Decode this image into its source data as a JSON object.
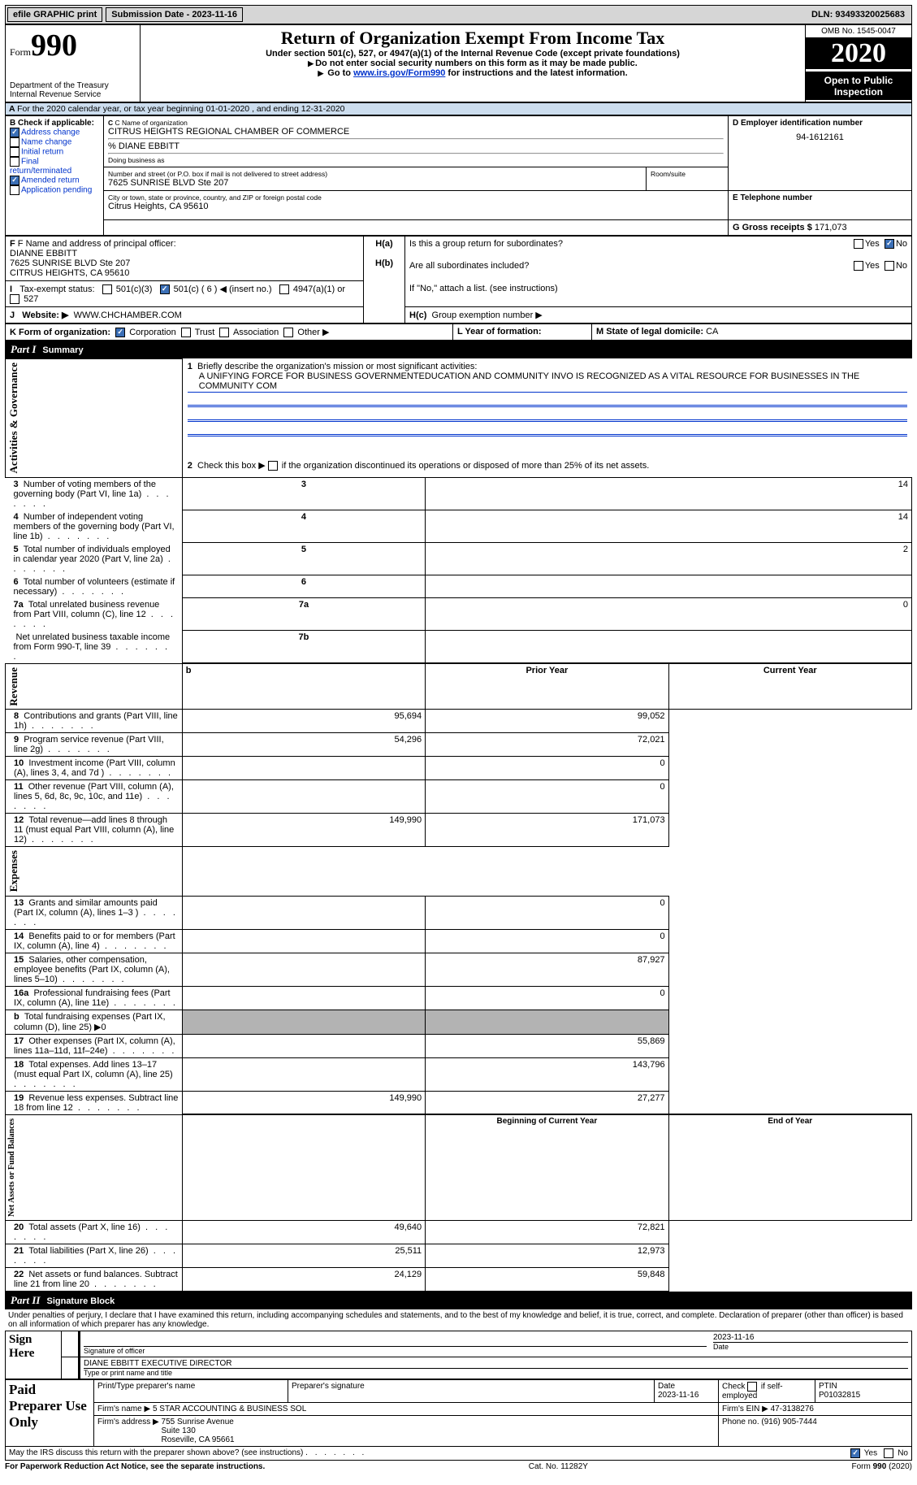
{
  "topbar": {
    "efile": "efile GRAPHIC print",
    "submission_label": "Submission Date - 2023-11-16",
    "dln": "DLN: 93493320025683"
  },
  "header": {
    "form_word": "Form",
    "form_num": "990",
    "dept": "Department of the Treasury\nInternal Revenue Service",
    "title": "Return of Organization Exempt From Income Tax",
    "subtitle": "Under section 501(c), 527, or 4947(a)(1) of the Internal Revenue Code (except private foundations)",
    "note1": "Do not enter social security numbers on this form as it may be made public.",
    "note2_pre": "Go to ",
    "note2_link": "www.irs.gov/Form990",
    "note2_post": " for instructions and the latest information.",
    "omb": "OMB No. 1545-0047",
    "year": "2020",
    "inspect": "Open to Public Inspection"
  },
  "lineA": "For the 2020 calendar year, or tax year beginning 01-01-2020    , and ending 12-31-2020",
  "blockB": {
    "title": "B Check if applicable:",
    "items": [
      {
        "label": "Address change",
        "checked": true
      },
      {
        "label": "Name change",
        "checked": false
      },
      {
        "label": "Initial return",
        "checked": false
      },
      {
        "label": "Final return/terminated",
        "checked": false
      },
      {
        "label": "Amended return",
        "checked": true
      },
      {
        "label": "Application pending",
        "checked": false
      }
    ]
  },
  "blockC": {
    "name_label": "C Name of organization",
    "name": "CITRUS HEIGHTS REGIONAL CHAMBER OF COMMERCE",
    "care_of": "% DIANE EBBITT",
    "dba_label": "Doing business as",
    "street_label": "Number and street (or P.O. box if mail is not delivered to street address)",
    "street": "7625 SUNRISE BLVD Ste 207",
    "room_label": "Room/suite",
    "city_label": "City or town, state or province, country, and ZIP or foreign postal code",
    "city": "Citrus Heights, CA  95610"
  },
  "blockD": {
    "label": "D Employer identification number",
    "value": "94-1612161"
  },
  "blockE": {
    "label": "E Telephone number"
  },
  "blockG": {
    "label": "G Gross receipts $",
    "value": "171,073"
  },
  "blockF": {
    "label": "F Name and address of principal officer:",
    "name": "DIANNE EBBITT",
    "addr1": "7625 SUNRISE BLVD Ste 207",
    "addr2": "CITRUS HEIGHTS, CA  95610"
  },
  "blockH": {
    "a": "Is this a group return for subordinates?",
    "b": "Are all subordinates included?",
    "b_note": "If \"No,\" attach a list. (see instructions)",
    "c": "Group exemption number ▶"
  },
  "blockI": {
    "label": "Tax-exempt status:",
    "opts": [
      "501(c)(3)",
      "501(c) ( 6 ) ◀ (insert no.)",
      "4947(a)(1) or",
      "527"
    ]
  },
  "blockJ": {
    "label": "Website: ▶",
    "value": "WWW.CHCHAMBER.COM"
  },
  "blockK": {
    "label": "K Form of organization:",
    "opts": [
      "Corporation",
      "Trust",
      "Association",
      "Other ▶"
    ]
  },
  "blockL": {
    "label": "L Year of formation:"
  },
  "blockM": {
    "label": "M State of legal domicile:",
    "value": "CA"
  },
  "part1": {
    "title": "Summary",
    "q1": "Briefly describe the organization's mission or most significant activities:",
    "q1a": "A UNIFYING FORCE FOR BUSINESS GOVERNMENTEDUCATION AND COMMUNITY INVO IS RECOGNIZED AS A VITAL RESOURCE FOR BUSINESSES IN THE COMMUNITY COM",
    "q2": "Check this box ▶         if the organization discontinued its operations or disposed of more than 25% of its net assets.",
    "rows_gov": [
      {
        "n": "3",
        "t": "Number of voting members of the governing body (Part VI, line 1a)",
        "box": "3",
        "v": "14"
      },
      {
        "n": "4",
        "t": "Number of independent voting members of the governing body (Part VI, line 1b)",
        "box": "4",
        "v": "14"
      },
      {
        "n": "5",
        "t": "Total number of individuals employed in calendar year 2020 (Part V, line 2a)",
        "box": "5",
        "v": "2"
      },
      {
        "n": "6",
        "t": "Total number of volunteers (estimate if necessary)",
        "box": "6",
        "v": ""
      },
      {
        "n": "7a",
        "t": "Total unrelated business revenue from Part VIII, column (C), line 12",
        "box": "7a",
        "v": "0"
      },
      {
        "n": "",
        "t": "Net unrelated business taxable income from Form 990-T, line 39",
        "box": "7b",
        "v": ""
      }
    ],
    "col_prior": "Prior Year",
    "col_curr": "Current Year",
    "rows_rev": [
      {
        "n": "8",
        "t": "Contributions and grants (Part VIII, line 1h)",
        "p": "95,694",
        "c": "99,052"
      },
      {
        "n": "9",
        "t": "Program service revenue (Part VIII, line 2g)",
        "p": "54,296",
        "c": "72,021"
      },
      {
        "n": "10",
        "t": "Investment income (Part VIII, column (A), lines 3, 4, and 7d )",
        "p": "",
        "c": "0"
      },
      {
        "n": "11",
        "t": "Other revenue (Part VIII, column (A), lines 5, 6d, 8c, 9c, 10c, and 11e)",
        "p": "",
        "c": "0"
      },
      {
        "n": "12",
        "t": "Total revenue—add lines 8 through 11 (must equal Part VIII, column (A), line 12)",
        "p": "149,990",
        "c": "171,073"
      }
    ],
    "rows_exp": [
      {
        "n": "13",
        "t": "Grants and similar amounts paid (Part IX, column (A), lines 1–3 )",
        "p": "",
        "c": "0"
      },
      {
        "n": "14",
        "t": "Benefits paid to or for members (Part IX, column (A), line 4)",
        "p": "",
        "c": "0"
      },
      {
        "n": "15",
        "t": "Salaries, other compensation, employee benefits (Part IX, column (A), lines 5–10)",
        "p": "",
        "c": "87,927"
      },
      {
        "n": "16a",
        "t": "Professional fundraising fees (Part IX, column (A), line 11e)",
        "p": "",
        "c": "0"
      },
      {
        "n": "b",
        "t": "Total fundraising expenses (Part IX, column (D), line 25) ▶0",
        "shaded": true
      },
      {
        "n": "17",
        "t": "Other expenses (Part IX, column (A), lines 11a–11d, 11f–24e)",
        "p": "",
        "c": "55,869"
      },
      {
        "n": "18",
        "t": "Total expenses. Add lines 13–17 (must equal Part IX, column (A), line 25)",
        "p": "",
        "c": "143,796"
      },
      {
        "n": "19",
        "t": "Revenue less expenses. Subtract line 18 from line 12",
        "p": "149,990",
        "c": "27,277"
      }
    ],
    "col_begin": "Beginning of Current Year",
    "col_end": "End of Year",
    "rows_net": [
      {
        "n": "20",
        "t": "Total assets (Part X, line 16)",
        "p": "49,640",
        "c": "72,821"
      },
      {
        "n": "21",
        "t": "Total liabilities (Part X, line 26)",
        "p": "25,511",
        "c": "12,973"
      },
      {
        "n": "22",
        "t": "Net assets or fund balances. Subtract line 21 from line 20",
        "p": "24,129",
        "c": "59,848"
      }
    ]
  },
  "vlabels": {
    "gov": "Activities & Governance",
    "rev": "Revenue",
    "exp": "Expenses",
    "net": "Net Assets or Fund Balances"
  },
  "part2": {
    "title": "Signature Block",
    "declaration": "Under penalties of perjury, I declare that I have examined this return, including accompanying schedules and statements, and to the best of my knowledge and belief, it is true, correct, and complete. Declaration of preparer (other than officer) is based on all information of which preparer has any knowledge.",
    "sign_here": "Sign Here",
    "sig_officer": "Signature of officer",
    "sig_date": "2023-11-16",
    "date_label": "Date",
    "officer_name": "DIANE EBBITT EXECUTIVE DIRECTOR",
    "type_label": "Type or print name and title",
    "paid": "Paid Preparer Use Only",
    "prep_name_label": "Print/Type preparer's name",
    "prep_sig_label": "Preparer's signature",
    "prep_date": "2023-11-16",
    "check_if": "Check          if self-employed",
    "ptin_label": "PTIN",
    "ptin": "P01032815",
    "firm_name_label": "Firm's name    ▶",
    "firm_name": "5 STAR ACCOUNTING & BUSINESS SOL",
    "firm_ein_label": "Firm's EIN ▶",
    "firm_ein": "47-3138276",
    "firm_addr_label": "Firm's address ▶",
    "firm_addr": "755 Sunrise Avenue\nSuite 130\nRoseville, CA  95661",
    "phone_label": "Phone no.",
    "phone": "(916) 905-7444",
    "discuss": "May the IRS discuss this return with the preparer shown above? (see instructions)"
  },
  "footer": {
    "left": "For Paperwork Reduction Act Notice, see the separate instructions.",
    "mid": "Cat. No. 11282Y",
    "right": "Form 990 (2020)"
  },
  "yn": {
    "yes": "Yes",
    "no": "No"
  }
}
